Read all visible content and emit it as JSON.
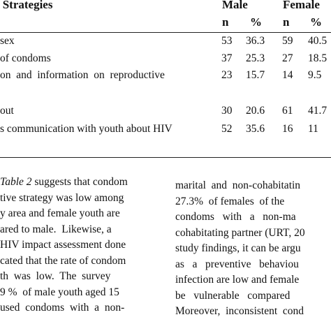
{
  "table": {
    "strategies_header": "n Strategies",
    "male_header": "Male",
    "female_header": "Female",
    "n_label": "n",
    "pct_label": "%",
    "rows": [
      {
        "label": " sex",
        "male_n": "53",
        "male_pct": "36.3",
        "female_n": "59",
        "female_pct": "40.5"
      },
      {
        "label": "of condoms",
        "male_n": "37",
        "male_pct": "25.3",
        "female_n": "27",
        "female_pct": "18.5"
      },
      {
        "label": "on  and  information  on  reproductive",
        "male_n": "23",
        "male_pct": "15.7",
        "female_n": "14",
        "female_pct": "9.5"
      },
      {
        "label": "out",
        "male_n": "30",
        "male_pct": "20.6",
        "female_n": "61",
        "female_pct": "41.7"
      },
      {
        "label": "s communication with youth about HIV",
        "male_n": "52",
        "male_pct": "35.6",
        "female_n": "16",
        "female_pct": "11"
      }
    ]
  },
  "body_left": [
    "Table 2 suggests that condom",
    "tive strategy was low among",
    "y area and female youth are",
    "ared to male.  Likewise, a",
    "HIV impact assessment done",
    "cated that the rate of condom",
    "th  was  low.  The  survey",
    "9 %  of male youth aged 15",
    "used  condoms  with  a  non-"
  ],
  "body_right": [
    "marital  and  non-cohabitatin",
    "27.3%  of females  of the",
    "condoms   with   a   non-ma",
    "cohabitating partner (URT, 20",
    "study findings, it can be argu",
    "as   a   preventive   behaviou",
    "infection are low and female",
    "be   vulnerable   compared",
    "Moreover,  inconsistent  cond"
  ]
}
